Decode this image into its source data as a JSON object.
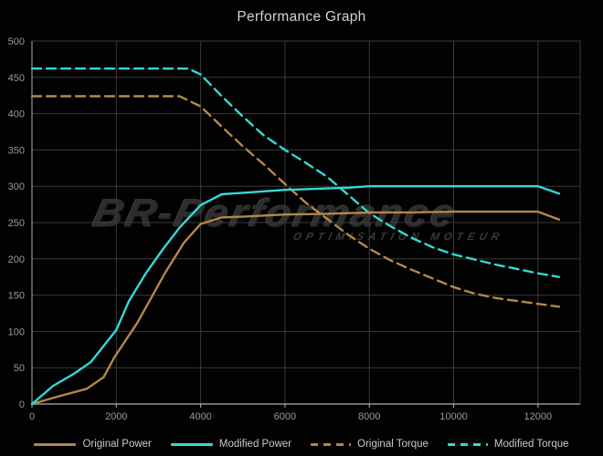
{
  "title": "Performance Graph",
  "watermark": {
    "brand": "BR-Performance",
    "subtitle": "OPTIMISATION MOTEUR"
  },
  "colors": {
    "background": "#020202",
    "grid": "#3a3a3a",
    "border": "#3a3a3a",
    "axis": "#b2b2b2",
    "tick_label": "#9a9a9a",
    "title_text": "#d2d2d2",
    "legend_text": "#c9c9c9",
    "original_color": "#b5874a",
    "modified_color": "#35d8d4",
    "watermark_main": "#2d2d2d",
    "watermark_sub": "#3a3a3a"
  },
  "chart_data": {
    "type": "line",
    "title": "Performance Graph",
    "xlabel": "",
    "ylabel": "",
    "xlim": [
      0,
      13000
    ],
    "ylim": [
      0,
      500
    ],
    "x_ticks": [
      0,
      2000,
      4000,
      6000,
      8000,
      10000,
      12000
    ],
    "y_ticks": [
      0,
      50,
      100,
      150,
      200,
      250,
      300,
      350,
      400,
      450,
      500
    ],
    "grid": true,
    "legend_position": "bottom",
    "series": [
      {
        "name": "Original Power",
        "color": "#b5874a",
        "dash": false,
        "points": [
          [
            0,
            0
          ],
          [
            600,
            10
          ],
          [
            1300,
            21
          ],
          [
            1700,
            37
          ],
          [
            1950,
            64
          ],
          [
            2500,
            112
          ],
          [
            3150,
            180
          ],
          [
            3600,
            222
          ],
          [
            4000,
            248
          ],
          [
            4500,
            257
          ],
          [
            5000,
            258
          ],
          [
            6000,
            261
          ],
          [
            7000,
            262
          ],
          [
            8000,
            264
          ],
          [
            9000,
            264
          ],
          [
            10000,
            265
          ],
          [
            11000,
            265
          ],
          [
            12000,
            265
          ],
          [
            12500,
            254
          ]
        ]
      },
      {
        "name": "Modified Power",
        "color": "#35d8d4",
        "dash": false,
        "points": [
          [
            0,
            0
          ],
          [
            500,
            25
          ],
          [
            1000,
            42
          ],
          [
            1400,
            58
          ],
          [
            2000,
            102
          ],
          [
            2300,
            142
          ],
          [
            2700,
            180
          ],
          [
            3100,
            213
          ],
          [
            3500,
            243
          ],
          [
            4000,
            274
          ],
          [
            4500,
            289
          ],
          [
            5000,
            291
          ],
          [
            5500,
            293
          ],
          [
            6000,
            295
          ],
          [
            6500,
            296
          ],
          [
            7000,
            297
          ],
          [
            7500,
            298
          ],
          [
            8000,
            300
          ],
          [
            9000,
            300
          ],
          [
            10000,
            300
          ],
          [
            11000,
            300
          ],
          [
            12000,
            300
          ],
          [
            12500,
            290
          ]
        ]
      },
      {
        "name": "Original Torque",
        "color": "#b5874a",
        "dash": true,
        "points": [
          [
            0,
            424
          ],
          [
            3500,
            424
          ],
          [
            4000,
            410
          ],
          [
            4500,
            382
          ],
          [
            5000,
            355
          ],
          [
            5500,
            330
          ],
          [
            6000,
            303
          ],
          [
            6500,
            277
          ],
          [
            7000,
            255
          ],
          [
            7500,
            233
          ],
          [
            8000,
            214
          ],
          [
            8500,
            198
          ],
          [
            9000,
            185
          ],
          [
            9500,
            173
          ],
          [
            10000,
            161
          ],
          [
            10500,
            152
          ],
          [
            11000,
            146
          ],
          [
            11500,
            142
          ],
          [
            12000,
            138
          ],
          [
            12500,
            134
          ]
        ]
      },
      {
        "name": "Modified Torque",
        "color": "#35d8d4",
        "dash": true,
        "points": [
          [
            0,
            462
          ],
          [
            3700,
            462
          ],
          [
            4000,
            454
          ],
          [
            4500,
            424
          ],
          [
            5000,
            396
          ],
          [
            5500,
            370
          ],
          [
            6000,
            350
          ],
          [
            6500,
            332
          ],
          [
            7000,
            313
          ],
          [
            7500,
            288
          ],
          [
            8000,
            263
          ],
          [
            8500,
            245
          ],
          [
            9000,
            229
          ],
          [
            9500,
            216
          ],
          [
            10000,
            206
          ],
          [
            10500,
            199
          ],
          [
            11000,
            192
          ],
          [
            11500,
            186
          ],
          [
            12000,
            180
          ],
          [
            12500,
            175
          ]
        ]
      }
    ]
  }
}
